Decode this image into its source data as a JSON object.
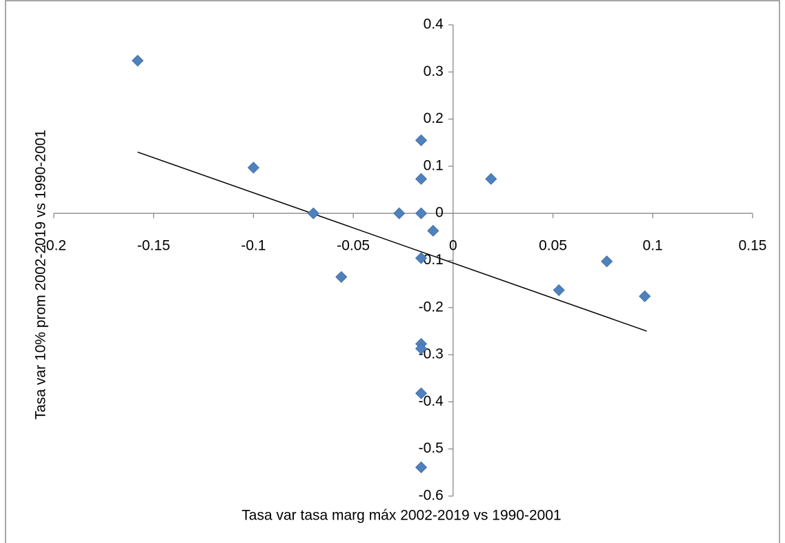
{
  "chart_data": {
    "type": "scatter",
    "x_label": "Tasa var tasa marg máx 2002-2019 vs 1990-2001",
    "y_label": "Tasa var 10% prom 2002-2019 vs 1990-2001",
    "series": [
      {
        "color": "#4f81bd",
        "x": [
          -0.158,
          -0.1,
          -0.07,
          -0.056,
          -0.027,
          -0.016,
          -0.016,
          -0.016,
          -0.01,
          -0.016,
          -0.016,
          -0.016,
          -0.016,
          -0.016,
          0.019,
          0.053,
          0.077,
          0.096
        ],
        "values": [
          0.324,
          0.097,
          0,
          -0.135,
          0,
          0.155,
          0.073,
          0,
          -0.037,
          -0.095,
          -0.277,
          -0.287,
          -0.382,
          -0.539,
          0.073,
          -0.163,
          -0.102,
          -0.176
        ]
      }
    ],
    "trendline": {
      "color": "#000000",
      "x": [
        -0.158,
        0.097
      ],
      "values": [
        0.13,
        -0.25
      ]
    },
    "xlim": [
      -0.2,
      0.15
    ],
    "xticks": [
      -0.2,
      -0.15,
      -0.1,
      -0.05,
      0,
      0.05,
      0.1,
      0.15
    ],
    "ylim": [
      -0.6,
      0.4
    ],
    "yticks": [
      0.4,
      0.3,
      0.2,
      0.1,
      0,
      -0.1,
      -0.2,
      -0.3,
      -0.4,
      -0.5,
      -0.6
    ]
  }
}
